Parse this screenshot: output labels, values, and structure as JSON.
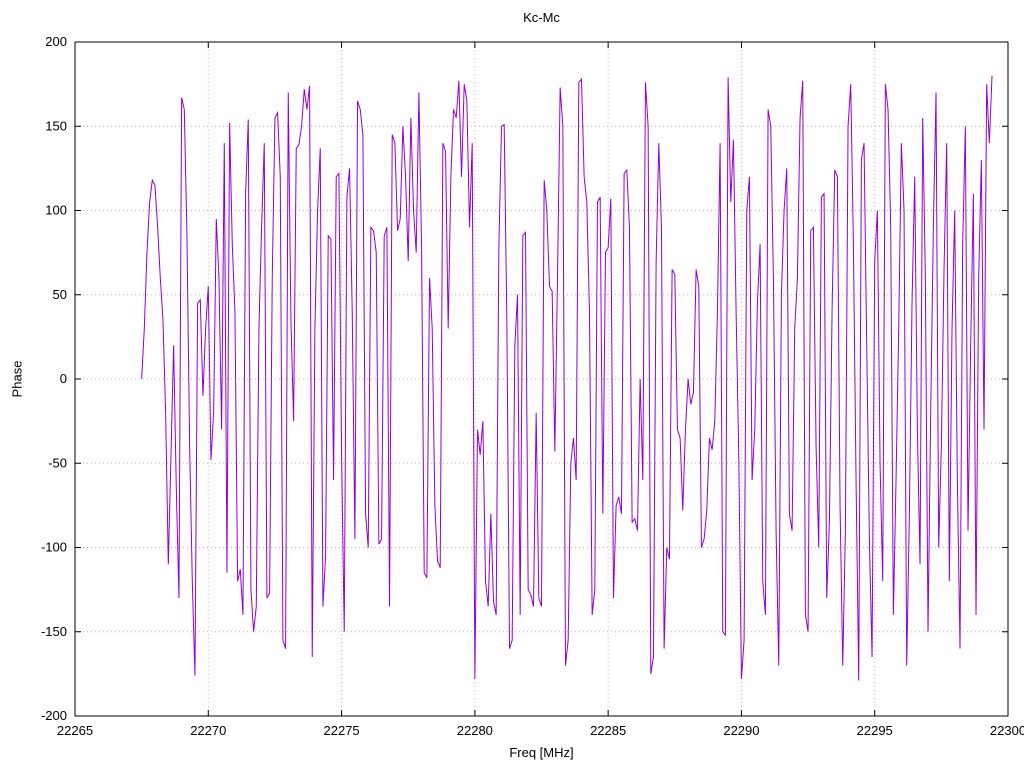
{
  "figure": {
    "title": "Kc-Mc",
    "xlabel": "Freq [MHz]",
    "ylabel": "Phase"
  },
  "chart_data": {
    "type": "line",
    "title": "Kc-Mc",
    "xlabel": "Freq [MHz]",
    "ylabel": "Phase",
    "xlim": [
      22265,
      22300
    ],
    "ylim": [
      -200,
      200
    ],
    "xticks": [
      22265,
      22270,
      22275,
      22280,
      22285,
      22290,
      22295,
      22300
    ],
    "yticks": [
      -200,
      -150,
      -100,
      -50,
      0,
      50,
      100,
      150,
      200
    ],
    "grid": true,
    "grid_style": "dotted",
    "grid_color": "#b8b8b8",
    "border_color": "#000000",
    "legend": "none",
    "line_color": "#9400d3",
    "series": [
      {
        "name": "phase",
        "x_start": 22267.5,
        "x_step": 0.1,
        "values": [
          0,
          30,
          75,
          105,
          118,
          115,
          90,
          60,
          35,
          -20,
          -110,
          -45,
          20,
          -65,
          -130,
          167,
          160,
          85,
          -40,
          -120,
          -176,
          45,
          47,
          -10,
          30,
          55,
          -48,
          -20,
          95,
          60,
          -30,
          140,
          -115,
          152,
          80,
          40,
          -120,
          -113,
          -140,
          110,
          154,
          -125,
          -150,
          -135,
          30,
          90,
          140,
          -130,
          -127,
          60,
          155,
          158,
          120,
          -155,
          -160,
          170,
          35,
          -25,
          137,
          139,
          150,
          172,
          160,
          174,
          -165,
          30,
          100,
          137,
          -135,
          -105,
          85,
          83,
          -60,
          120,
          122,
          -45,
          -150,
          108,
          125,
          40,
          -95,
          165,
          160,
          145,
          -80,
          -100,
          90,
          88,
          75,
          -98,
          -95,
          85,
          90,
          -135,
          145,
          140,
          88,
          95,
          150,
          120,
          70,
          155,
          100,
          75,
          170,
          80,
          -115,
          -118,
          60,
          30,
          -75,
          -108,
          -112,
          140,
          135,
          30,
          120,
          160,
          155,
          177,
          120,
          175,
          165,
          90,
          140,
          -178,
          -30,
          -45,
          -25,
          -120,
          -135,
          -80,
          -132,
          -140,
          78,
          150,
          151,
          35,
          -160,
          -155,
          20,
          50,
          -140,
          85,
          87,
          -125,
          -128,
          -135,
          -20,
          -130,
          -135,
          118,
          100,
          55,
          52,
          -43,
          60,
          173,
          150,
          -170,
          -155,
          -50,
          -35,
          -60,
          176,
          178,
          120,
          105,
          40,
          -140,
          -125,
          105,
          108,
          -80,
          75,
          78,
          107,
          -130,
          -75,
          -70,
          -80,
          122,
          124,
          90,
          -85,
          -83,
          -90,
          0,
          -60,
          176,
          150,
          -175,
          -165,
          70,
          140,
          90,
          -160,
          -100,
          -107,
          65,
          62,
          -30,
          -35,
          -78,
          -30,
          0,
          -15,
          -8,
          65,
          55,
          -100,
          -95,
          -78,
          -35,
          -42,
          -25,
          40,
          140,
          -150,
          -152,
          179,
          105,
          142,
          40,
          -45,
          -178,
          -155,
          100,
          120,
          -60,
          -30,
          45,
          80,
          -120,
          -140,
          160,
          150,
          60,
          -90,
          -170,
          50,
          100,
          125,
          -80,
          -90,
          30,
          60,
          155,
          177,
          -140,
          -150,
          88,
          90,
          -40,
          -100,
          108,
          110,
          -130,
          -85,
          40,
          124,
          120,
          -75,
          -170,
          -90,
          150,
          175,
          80,
          -60,
          -179,
          130,
          140,
          20,
          -95,
          -165,
          70,
          100,
          -50,
          -120,
          175,
          160,
          90,
          -140,
          -60,
          30,
          140,
          100,
          -170,
          -80,
          45,
          120,
          -30,
          -110,
          155,
          60,
          -150,
          -20,
          90,
          170,
          -100,
          -40,
          65,
          140,
          -120,
          30,
          100,
          -60,
          -160,
          80,
          150,
          -90,
          20,
          110,
          -140,
          60,
          130,
          -30,
          175,
          140,
          180
        ]
      }
    ]
  }
}
